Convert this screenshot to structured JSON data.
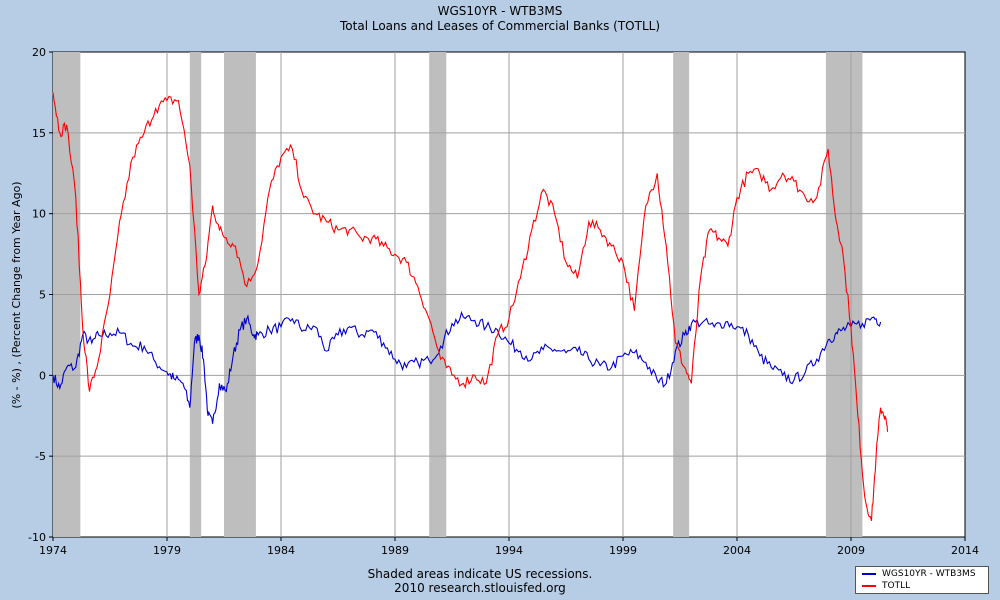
{
  "chart_data": {
    "type": "line",
    "title": "WGS10YR - WTB3MS",
    "subtitle": "Total Loans and Leases of Commercial Banks (TOTLL)",
    "xlabel": "",
    "ylabel": "(% - %) , (Percent Change from Year Ago)",
    "xlim": [
      1974,
      2014
    ],
    "ylim": [
      -10,
      20
    ],
    "x_ticks": [
      "1974",
      "1979",
      "1984",
      "1989",
      "1994",
      "1999",
      "2004",
      "2009",
      "2014"
    ],
    "y_ticks": [
      "20",
      "15",
      "10",
      "5",
      "0",
      "-5",
      "-10"
    ],
    "grid": true,
    "legend_position": "bottom-right, outside plot",
    "recessions": [
      [
        1974.0,
        1975.2
      ],
      [
        1980.0,
        1980.5
      ],
      [
        1981.5,
        1982.9
      ],
      [
        1990.5,
        1991.25
      ],
      [
        2001.2,
        2001.9
      ],
      [
        2007.9,
        2009.5
      ]
    ],
    "series": [
      {
        "name": "WGS10YR - WTB3MS",
        "color": "#0000cc",
        "x": [
          1974.0,
          1974.3,
          1974.6,
          1975.0,
          1975.3,
          1975.7,
          1976.0,
          1976.5,
          1977.0,
          1977.5,
          1978.0,
          1978.5,
          1979.0,
          1979.3,
          1979.7,
          1980.0,
          1980.2,
          1980.4,
          1980.6,
          1980.8,
          1981.0,
          1981.3,
          1981.6,
          1981.9,
          1982.2,
          1982.5,
          1982.8,
          1983.0,
          1983.5,
          1984.0,
          1984.5,
          1985.0,
          1985.5,
          1986.0,
          1986.5,
          1987.0,
          1987.5,
          1988.0,
          1988.5,
          1989.0,
          1989.5,
          1990.0,
          1990.5,
          1991.0,
          1991.5,
          1992.0,
          1992.5,
          1993.0,
          1993.5,
          1994.0,
          1994.5,
          1995.0,
          1995.5,
          1996.0,
          1996.5,
          1997.0,
          1997.5,
          1998.0,
          1998.5,
          1999.0,
          1999.5,
          2000.0,
          2000.5,
          2000.9,
          2001.3,
          2001.7,
          2002.0,
          2002.5,
          2003.0,
          2003.5,
          2004.0,
          2004.5,
          2005.0,
          2005.5,
          2006.0,
          2006.5,
          2007.0,
          2007.5,
          2008.0,
          2008.3,
          2008.6,
          2009.0,
          2009.5,
          2010.0,
          2010.3
        ],
        "values": [
          0.0,
          -0.8,
          0.5,
          0.5,
          2.5,
          2.0,
          2.5,
          2.6,
          2.6,
          1.8,
          1.8,
          0.8,
          0.2,
          -0.2,
          -0.5,
          -2.0,
          2.0,
          2.5,
          1.0,
          -2.5,
          -3.0,
          -0.5,
          -1.0,
          1.2,
          2.8,
          3.5,
          2.5,
          2.5,
          2.8,
          3.0,
          3.5,
          2.8,
          3.0,
          1.5,
          2.5,
          3.0,
          2.5,
          2.8,
          2.0,
          1.0,
          0.5,
          0.8,
          0.9,
          1.8,
          3.2,
          3.6,
          3.4,
          3.0,
          2.8,
          2.0,
          1.5,
          1.0,
          1.6,
          1.6,
          1.4,
          1.5,
          1.0,
          0.6,
          0.5,
          1.2,
          1.4,
          0.8,
          -0.3,
          -0.5,
          1.5,
          2.5,
          3.2,
          3.3,
          3.0,
          3.3,
          3.0,
          2.5,
          1.2,
          0.5,
          0.0,
          -0.3,
          0.2,
          1.0,
          2.2,
          2.5,
          2.8,
          3.0,
          3.2,
          3.6,
          3.3
        ]
      },
      {
        "name": "TOTLL",
        "color": "#ff0000",
        "x": [
          1974.0,
          1974.3,
          1974.6,
          1975.0,
          1975.3,
          1975.6,
          1976.0,
          1976.5,
          1977.0,
          1977.5,
          1978.0,
          1978.5,
          1979.0,
          1979.5,
          1980.0,
          1980.4,
          1980.7,
          1981.0,
          1981.3,
          1981.6,
          1982.0,
          1982.5,
          1983.0,
          1983.5,
          1984.0,
          1984.5,
          1985.0,
          1985.5,
          1986.0,
          1986.5,
          1987.0,
          1987.5,
          1988.0,
          1988.5,
          1989.0,
          1989.5,
          1990.0,
          1990.5,
          1991.0,
          1991.5,
          1992.0,
          1992.5,
          1993.0,
          1993.5,
          1994.0,
          1994.5,
          1995.0,
          1995.5,
          1996.0,
          1996.5,
          1997.0,
          1997.5,
          1998.0,
          1998.5,
          1999.0,
          1999.5,
          2000.0,
          2000.5,
          2000.9,
          2001.3,
          2001.7,
          2002.0,
          2002.4,
          2002.8,
          2003.2,
          2003.6,
          2004.0,
          2004.5,
          2005.0,
          2005.5,
          2006.0,
          2006.5,
          2007.0,
          2007.5,
          2008.0,
          2008.3,
          2008.6,
          2009.0,
          2009.3,
          2009.6,
          2009.9,
          2010.1,
          2010.3,
          2010.5,
          2010.6
        ],
        "values": [
          17.5,
          15.0,
          15.5,
          11.0,
          3.0,
          -1.0,
          1.0,
          5.0,
          10.0,
          13.5,
          15.0,
          16.5,
          17.0,
          17.0,
          13.0,
          5.0,
          7.0,
          10.5,
          9.0,
          8.5,
          8.0,
          5.5,
          7.0,
          11.5,
          13.5,
          14.0,
          11.0,
          10.0,
          9.5,
          9.0,
          9.0,
          8.5,
          8.5,
          8.0,
          7.5,
          7.0,
          5.5,
          3.5,
          1.0,
          0.0,
          -0.5,
          0.0,
          -0.5,
          2.5,
          3.5,
          6.0,
          9.0,
          11.5,
          10.0,
          7.0,
          6.0,
          9.5,
          9.0,
          8.0,
          7.0,
          4.0,
          10.5,
          12.5,
          8.0,
          2.0,
          0.5,
          -0.5,
          6.0,
          9.0,
          8.5,
          8.0,
          11.0,
          12.5,
          12.5,
          11.5,
          12.5,
          12.0,
          11.0,
          11.0,
          14.0,
          10.0,
          8.0,
          3.0,
          -2.5,
          -7.5,
          -9.0,
          -5.0,
          -2.0,
          -2.5,
          -3.5
        ]
      }
    ]
  },
  "footer": {
    "note": "Shaded areas indicate US recessions.",
    "source": "2010 research.stlouisfed.org"
  }
}
